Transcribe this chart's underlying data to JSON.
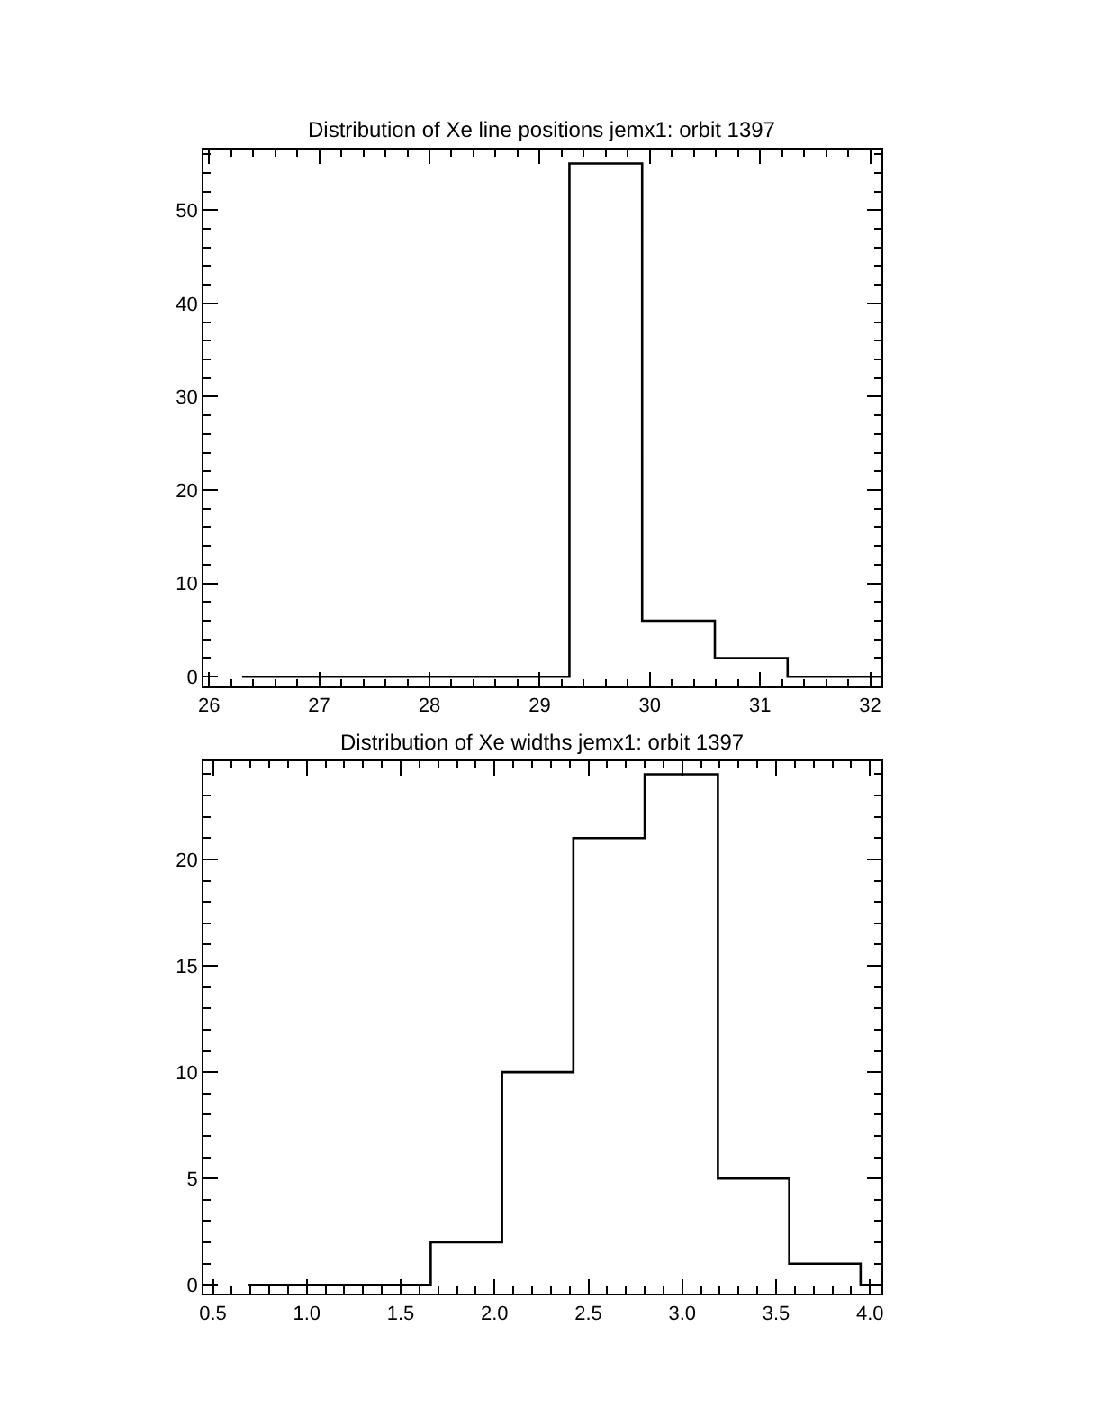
{
  "chart_data": [
    {
      "type": "histogram",
      "title": "Distribution of Xe line positions jemx1: orbit 1397",
      "bins": [
        26.3,
        29.27,
        29.93,
        30.59,
        31.25,
        32.1
      ],
      "values": [
        0,
        55,
        6,
        2,
        0
      ],
      "color": "#000000",
      "xlim": [
        25.95,
        32.1
      ],
      "xticks": [
        26,
        27,
        28,
        29,
        30,
        31,
        32
      ],
      "ylim": [
        -1,
        56.5
      ],
      "yticks": [
        0,
        10,
        20,
        30,
        40,
        50
      ]
    },
    {
      "type": "histogram",
      "title": "Distribution of Xe widths jemx1: orbit 1397",
      "bins": [
        0.69,
        1.66,
        2.04,
        2.42,
        2.8,
        3.19,
        3.57,
        3.95,
        4.06
      ],
      "values": [
        0,
        2,
        10,
        21,
        24,
        5,
        1,
        0
      ],
      "color": "#000000",
      "xlim": [
        0.45,
        4.06
      ],
      "xticks": [
        {
          "value": 0.5,
          "label": "0.5"
        },
        {
          "value": 1,
          "label": "1.0"
        },
        {
          "value": 1.5,
          "label": "1.5"
        },
        {
          "value": 2,
          "label": "2.0"
        },
        {
          "value": 2.5,
          "label": "2.5"
        },
        {
          "value": 3,
          "label": "3.0"
        },
        {
          "value": 3.5,
          "label": "3.5"
        },
        {
          "value": 4,
          "label": "4.0"
        }
      ],
      "ylim": [
        -0.42,
        24.6
      ],
      "yticks": [
        0,
        5,
        10,
        15,
        20
      ]
    }
  ]
}
